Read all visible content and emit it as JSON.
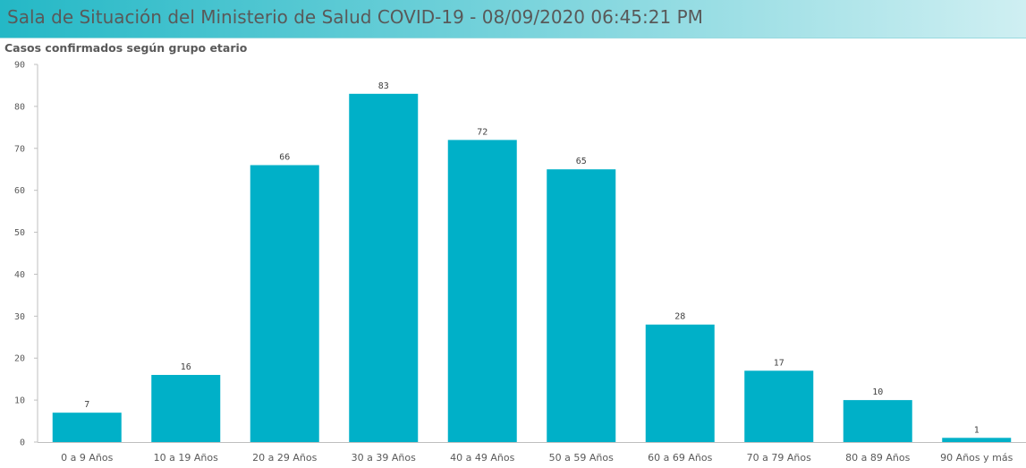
{
  "header": {
    "title": "Sala de Situación del Ministerio de Salud COVID-19 - 08/09/2020 06:45:21 PM"
  },
  "colors": {
    "bar": "#00b0c8",
    "axis": "#bfbfbf",
    "header_start": "#24b8c6",
    "header_end": "#cfeff2"
  },
  "chart_data": {
    "type": "bar",
    "title": "Casos confirmados según grupo etario",
    "xlabel": "",
    "ylabel": "",
    "categories": [
      "0 a 9 Años",
      "10 a 19 Años",
      "20 a 29 Años",
      "30 a 39 Años",
      "40 a 49 Años",
      "50 a 59 Años",
      "60 a 69 Años",
      "70 a 79 Años",
      "80 a 89 Años",
      "90 Años y más"
    ],
    "values": [
      7,
      16,
      66,
      83,
      72,
      65,
      28,
      17,
      10,
      1
    ],
    "yticks": [
      0,
      10,
      20,
      30,
      40,
      50,
      60,
      70,
      80,
      90
    ],
    "ylim": [
      0,
      90
    ],
    "grid": false,
    "legend": "none"
  }
}
